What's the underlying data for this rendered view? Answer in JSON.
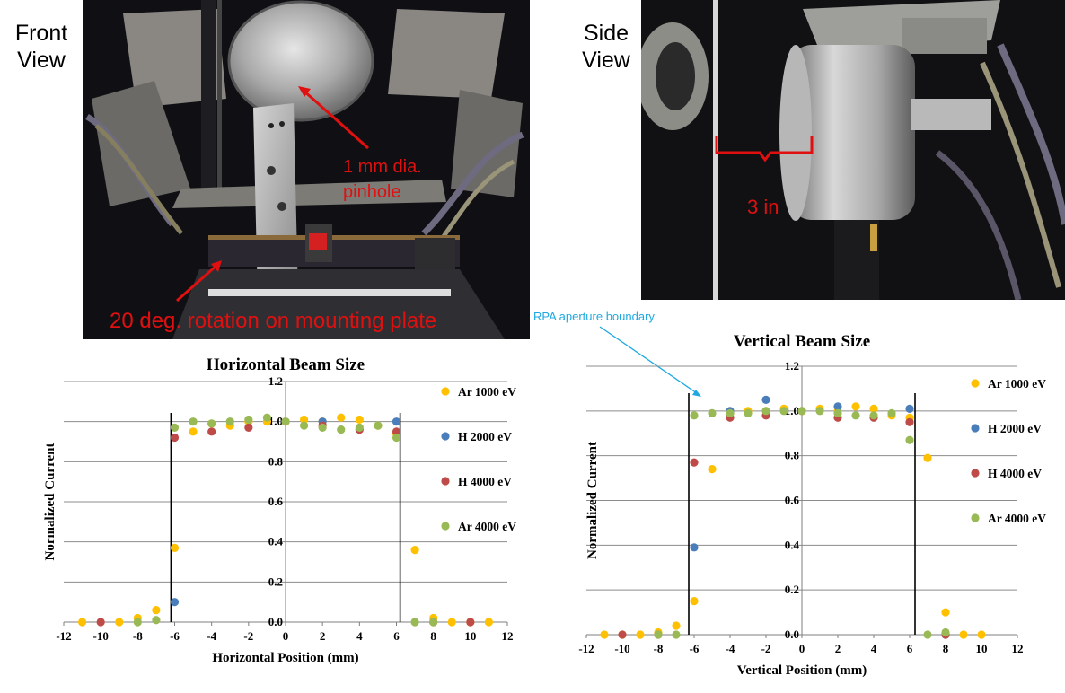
{
  "figure": {
    "front_view_label": "Front\nView",
    "side_view_label": "Side\nView",
    "front_photo_notes": {
      "pinhole_label": "1 mm dia.\npinhole",
      "rotation_label": "20 deg. rotation on mounting plate"
    },
    "side_photo_notes": {
      "dimension_label": "3 in"
    },
    "rpa_boundary_label": "RPA aperture boundary",
    "colors": {
      "annotation_red": "#e01010",
      "annotation_blue": "#1fa9e0",
      "ar1000": "#ffc000",
      "h2000": "#4a7ebb",
      "h4000": "#be4b48",
      "ar4000": "#98b954"
    }
  },
  "chart_data": [
    {
      "type": "scatter",
      "title": "Horizontal Beam Size",
      "xlabel": "Horizontal Position (mm)",
      "ylabel": "Normalized Current",
      "xlim": [
        -12,
        12
      ],
      "ylim": [
        0,
        1.2
      ],
      "xticks": [
        "-12",
        "-10",
        "-8",
        "-6",
        "-4",
        "-2",
        "0",
        "2",
        "4",
        "6",
        "8",
        "10",
        "12"
      ],
      "yticks": [
        "0.0",
        "0.2",
        "0.4",
        "0.6",
        "0.8",
        "1.0",
        "1.2"
      ],
      "grid": "horizontal",
      "legend_position": "right",
      "boundaries": [
        -6.2,
        6.2
      ],
      "series": [
        {
          "name": "Ar 1000 eV",
          "color": "#ffc000",
          "points": [
            [
              -11,
              0.0
            ],
            [
              -9,
              0.0
            ],
            [
              -8,
              0.02
            ],
            [
              -7,
              0.06
            ],
            [
              -6,
              0.37
            ],
            [
              -5,
              0.95
            ],
            [
              -4,
              0.99
            ],
            [
              -3,
              0.98
            ],
            [
              -2,
              1.0
            ],
            [
              -1,
              1.0
            ],
            [
              0,
              1.0
            ],
            [
              1,
              1.01
            ],
            [
              2,
              1.0
            ],
            [
              3,
              1.02
            ],
            [
              4,
              1.01
            ],
            [
              5,
              0.98
            ],
            [
              6,
              0.94
            ],
            [
              7,
              0.36
            ],
            [
              8,
              0.02
            ],
            [
              9,
              0.0
            ],
            [
              10,
              0.0
            ],
            [
              11,
              0.0
            ]
          ]
        },
        {
          "name": "H 2000 eV",
          "color": "#4a7ebb",
          "points": [
            [
              -6,
              0.1
            ],
            [
              2,
              1.0
            ],
            [
              6,
              1.0
            ]
          ]
        },
        {
          "name": "H 4000 eV",
          "color": "#be4b48",
          "points": [
            [
              -10,
              0.0
            ],
            [
              -6,
              0.92
            ],
            [
              -4,
              0.95
            ],
            [
              -2,
              0.97
            ],
            [
              0,
              1.0
            ],
            [
              2,
              0.98
            ],
            [
              4,
              0.96
            ],
            [
              6,
              0.95
            ],
            [
              8,
              0.0
            ],
            [
              10,
              0.0
            ]
          ]
        },
        {
          "name": "Ar 4000 eV",
          "color": "#98b954",
          "points": [
            [
              -8,
              0.0
            ],
            [
              -7,
              0.01
            ],
            [
              -6,
              0.97
            ],
            [
              -5,
              1.0
            ],
            [
              -4,
              0.99
            ],
            [
              -3,
              1.0
            ],
            [
              -2,
              1.01
            ],
            [
              -1,
              1.02
            ],
            [
              0,
              1.0
            ],
            [
              1,
              0.98
            ],
            [
              2,
              0.97
            ],
            [
              3,
              0.96
            ],
            [
              4,
              0.97
            ],
            [
              5,
              0.98
            ],
            [
              6,
              0.92
            ],
            [
              7,
              0.0
            ],
            [
              8,
              0.0
            ]
          ]
        }
      ]
    },
    {
      "type": "scatter",
      "title": "Vertical Beam Size",
      "xlabel": "Vertical Position (mm)",
      "ylabel": "Normalized Current",
      "xlim": [
        -12,
        12
      ],
      "ylim": [
        0,
        1.2
      ],
      "xticks": [
        "-12",
        "-10",
        "-8",
        "-6",
        "-4",
        "-2",
        "0",
        "2",
        "4",
        "6",
        "8",
        "10",
        "12"
      ],
      "yticks": [
        "0.0",
        "0.2",
        "0.4",
        "0.6",
        "0.8",
        "1.0",
        "1.2"
      ],
      "grid": "horizontal",
      "legend_position": "right",
      "boundaries": [
        -6.3,
        6.3
      ],
      "series": [
        {
          "name": "Ar 1000 eV",
          "color": "#ffc000",
          "points": [
            [
              -11,
              0.0
            ],
            [
              -10,
              0.0
            ],
            [
              -9,
              0.0
            ],
            [
              -8,
              0.01
            ],
            [
              -7,
              0.04
            ],
            [
              -6,
              0.15
            ],
            [
              -5,
              0.74
            ],
            [
              -4,
              0.99
            ],
            [
              -3,
              1.0
            ],
            [
              -2,
              1.0
            ],
            [
              -1,
              1.01
            ],
            [
              0,
              1.0
            ],
            [
              1,
              1.01
            ],
            [
              2,
              1.0
            ],
            [
              3,
              1.02
            ],
            [
              4,
              1.01
            ],
            [
              5,
              0.98
            ],
            [
              6,
              0.97
            ],
            [
              7,
              0.79
            ],
            [
              8,
              0.1
            ],
            [
              9,
              0.0
            ],
            [
              10,
              0.0
            ]
          ]
        },
        {
          "name": "H 2000 eV",
          "color": "#4a7ebb",
          "points": [
            [
              -6,
              0.39
            ],
            [
              -4,
              1.0
            ],
            [
              -2,
              1.05
            ],
            [
              2,
              1.02
            ],
            [
              6,
              1.01
            ],
            [
              8,
              0.0
            ]
          ]
        },
        {
          "name": "H 4000 eV",
          "color": "#be4b48",
          "points": [
            [
              -10,
              0.0
            ],
            [
              -8,
              0.0
            ],
            [
              -6,
              0.77
            ],
            [
              -4,
              0.97
            ],
            [
              -2,
              0.98
            ],
            [
              0,
              1.0
            ],
            [
              2,
              0.97
            ],
            [
              4,
              0.97
            ],
            [
              6,
              0.95
            ],
            [
              8,
              0.0
            ]
          ]
        },
        {
          "name": "Ar 4000 eV",
          "color": "#98b954",
          "points": [
            [
              -8,
              0.0
            ],
            [
              -7,
              0.0
            ],
            [
              -6,
              0.98
            ],
            [
              -5,
              0.99
            ],
            [
              -4,
              0.99
            ],
            [
              -3,
              0.99
            ],
            [
              -2,
              1.0
            ],
            [
              -1,
              1.0
            ],
            [
              0,
              1.0
            ],
            [
              1,
              1.0
            ],
            [
              2,
              0.99
            ],
            [
              3,
              0.98
            ],
            [
              4,
              0.98
            ],
            [
              5,
              0.99
            ],
            [
              6,
              0.87
            ],
            [
              7,
              0.0
            ],
            [
              8,
              0.01
            ]
          ]
        }
      ]
    }
  ]
}
